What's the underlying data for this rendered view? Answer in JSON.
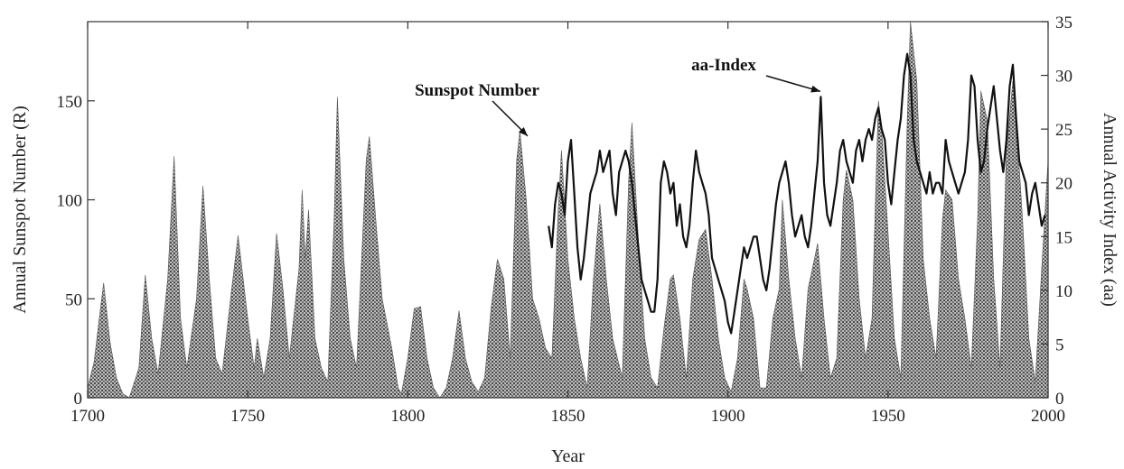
{
  "chart_data": {
    "type": "area",
    "xlabel": "Year",
    "ylabel_left": "Annual Sunspot Number (R)",
    "ylabel_right": "Annual Activity Index (aa)",
    "xlim": [
      1700,
      2000
    ],
    "ylim_left": [
      0,
      190
    ],
    "ylim_right": [
      0,
      35
    ],
    "x_ticks": [
      1700,
      1750,
      1800,
      1850,
      1900,
      1950,
      2000
    ],
    "y_ticks_left": [
      0,
      50,
      100,
      150
    ],
    "y_ticks_right": [
      0,
      5,
      10,
      15,
      20,
      25,
      30,
      35
    ],
    "grid": false,
    "series": [
      {
        "name": "Sunspot Number",
        "axis": "left",
        "style": "stippled-area",
        "x": [
          1700,
          1702,
          1704,
          1705,
          1707,
          1709,
          1711,
          1713,
          1716,
          1718,
          1720,
          1722,
          1725,
          1727,
          1729,
          1731,
          1734,
          1736,
          1738,
          1740,
          1742,
          1745,
          1747,
          1750,
          1752,
          1753,
          1755,
          1757,
          1759,
          1761,
          1763,
          1766,
          1767,
          1768,
          1769,
          1771,
          1773,
          1775,
          1777,
          1778,
          1780,
          1782,
          1784,
          1787,
          1788,
          1790,
          1792,
          1795,
          1797,
          1798,
          1800,
          1802,
          1804,
          1806,
          1808,
          1810,
          1812,
          1814,
          1816,
          1818,
          1820,
          1822,
          1824,
          1826,
          1828,
          1830,
          1832,
          1834,
          1835,
          1837,
          1839,
          1841,
          1843,
          1845,
          1847,
          1848,
          1850,
          1852,
          1854,
          1856,
          1858,
          1860,
          1862,
          1864,
          1867,
          1869,
          1870,
          1872,
          1874,
          1876,
          1878,
          1880,
          1882,
          1883,
          1885,
          1887,
          1889,
          1891,
          1893,
          1895,
          1897,
          1899,
          1901,
          1903,
          1905,
          1906,
          1908,
          1910,
          1912,
          1914,
          1916,
          1917,
          1919,
          1921,
          1923,
          1925,
          1927,
          1928,
          1930,
          1932,
          1934,
          1936,
          1937,
          1939,
          1941,
          1943,
          1945,
          1947,
          1948,
          1950,
          1952,
          1954,
          1956,
          1957,
          1959,
          1961,
          1963,
          1965,
          1967,
          1968,
          1970,
          1972,
          1974,
          1976,
          1978,
          1979,
          1981,
          1983,
          1985,
          1987,
          1989,
          1990,
          1992,
          1994,
          1996,
          1998,
          2000
        ],
        "values": [
          5,
          18,
          45,
          58,
          28,
          10,
          2,
          0,
          15,
          62,
          30,
          12,
          60,
          122,
          40,
          15,
          50,
          107,
          60,
          20,
          12,
          55,
          82,
          40,
          15,
          30,
          10,
          30,
          83,
          55,
          20,
          65,
          105,
          70,
          95,
          30,
          15,
          8,
          90,
          152,
          70,
          30,
          15,
          120,
          132,
          90,
          50,
          25,
          5,
          2,
          20,
          45,
          46,
          20,
          5,
          0,
          5,
          20,
          44,
          20,
          8,
          3,
          10,
          45,
          70,
          60,
          20,
          120,
          135,
          100,
          50,
          40,
          25,
          20,
          95,
          125,
          70,
          40,
          20,
          5,
          60,
          98,
          60,
          30,
          10,
          110,
          139,
          80,
          30,
          10,
          5,
          35,
          60,
          62,
          40,
          10,
          60,
          80,
          85,
          60,
          30,
          10,
          3,
          20,
          60,
          55,
          40,
          5,
          5,
          40,
          55,
          100,
          60,
          30,
          10,
          55,
          70,
          78,
          40,
          10,
          20,
          100,
          115,
          100,
          50,
          20,
          40,
          150,
          136,
          84,
          30,
          10,
          140,
          190,
          160,
          70,
          40,
          20,
          90,
          105,
          100,
          60,
          40,
          15,
          90,
          155,
          140,
          60,
          15,
          125,
          160,
          142,
          90,
          30,
          8,
          65,
          120
        ]
      },
      {
        "name": "aa-Index",
        "axis": "right",
        "style": "line",
        "x": [
          1844,
          1845,
          1846,
          1847,
          1848,
          1849,
          1850,
          1851,
          1852,
          1853,
          1854,
          1855,
          1856,
          1857,
          1858,
          1859,
          1860,
          1861,
          1862,
          1863,
          1864,
          1865,
          1866,
          1867,
          1868,
          1869,
          1870,
          1871,
          1872,
          1873,
          1874,
          1875,
          1876,
          1877,
          1878,
          1879,
          1880,
          1881,
          1882,
          1883,
          1884,
          1885,
          1886,
          1887,
          1888,
          1889,
          1890,
          1891,
          1892,
          1893,
          1894,
          1895,
          1896,
          1897,
          1898,
          1899,
          1900,
          1901,
          1902,
          1903,
          1904,
          1905,
          1906,
          1907,
          1908,
          1909,
          1910,
          1911,
          1912,
          1913,
          1914,
          1915,
          1916,
          1917,
          1918,
          1919,
          1920,
          1921,
          1922,
          1923,
          1924,
          1925,
          1926,
          1927,
          1928,
          1929,
          1930,
          1931,
          1932,
          1933,
          1934,
          1935,
          1936,
          1937,
          1938,
          1939,
          1940,
          1941,
          1942,
          1943,
          1944,
          1945,
          1946,
          1947,
          1948,
          1949,
          1950,
          1951,
          1952,
          1953,
          1954,
          1955,
          1956,
          1957,
          1958,
          1959,
          1960,
          1961,
          1962,
          1963,
          1964,
          1965,
          1966,
          1967,
          1968,
          1969,
          1970,
          1971,
          1972,
          1973,
          1974,
          1975,
          1976,
          1977,
          1978,
          1979,
          1980,
          1981,
          1982,
          1983,
          1984,
          1985,
          1986,
          1987,
          1988,
          1989,
          1990,
          1991,
          1992,
          1993,
          1994,
          1995,
          1996,
          1997,
          1998,
          1999
        ],
        "values": [
          16,
          14,
          18,
          20,
          19,
          17,
          22,
          24,
          19,
          14,
          11,
          13,
          16,
          19,
          20,
          21,
          23,
          21,
          22,
          23,
          19,
          17,
          21,
          22,
          23,
          22,
          20,
          17,
          14,
          11,
          10,
          9,
          8,
          8,
          11,
          20,
          22,
          21,
          19,
          20,
          16,
          18,
          15,
          14,
          16,
          20,
          23,
          21,
          20,
          19,
          17,
          13,
          12,
          11,
          10,
          9,
          7,
          6,
          8,
          10,
          12,
          14,
          13,
          14,
          15,
          15,
          13,
          11,
          10,
          12,
          15,
          18,
          20,
          21,
          22,
          20,
          17,
          15,
          16,
          17,
          15,
          14,
          16,
          19,
          22,
          28,
          20,
          17,
          16,
          18,
          20,
          23,
          24,
          22,
          21,
          20,
          23,
          24,
          22,
          24,
          25,
          24,
          26,
          27,
          25,
          24,
          20,
          18,
          21,
          24,
          26,
          30,
          32,
          30,
          24,
          22,
          21,
          20,
          19,
          21,
          19,
          20,
          20,
          19,
          24,
          22,
          21,
          20,
          19,
          20,
          21,
          24,
          30,
          29,
          24,
          21,
          22,
          25,
          27,
          29,
          26,
          23,
          21,
          24,
          29,
          31,
          26,
          22,
          21,
          20,
          17,
          19,
          20,
          18,
          16,
          17
        ]
      }
    ],
    "annotations": [
      {
        "text": "Sunspot Number",
        "x": 1838,
        "y": 134,
        "axis": "left"
      },
      {
        "text": "aa-Index",
        "x": 1930,
        "y": 28,
        "axis": "right"
      }
    ]
  }
}
